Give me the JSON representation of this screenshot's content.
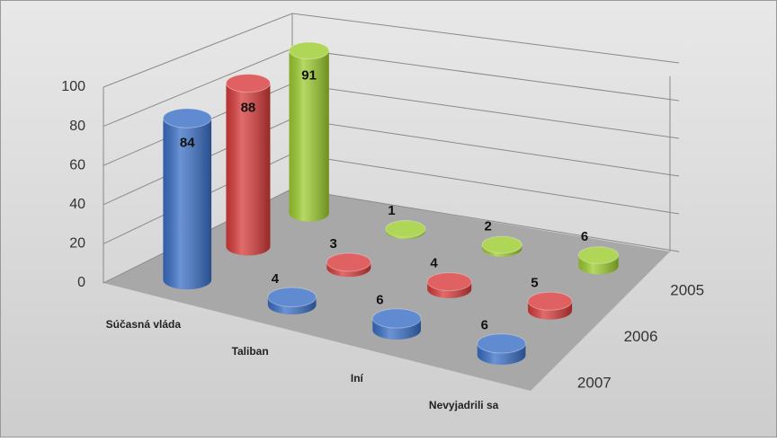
{
  "chart_data": {
    "type": "bar3d",
    "categories": [
      "Súčasná vláda",
      "Taliban",
      "Iní",
      "Nevyjadrili sa"
    ],
    "series": [
      {
        "name": "2005",
        "color": "#9dcc2e",
        "values": [
          91,
          1,
          2,
          6
        ]
      },
      {
        "name": "2006",
        "color": "#d83a3a",
        "values": [
          88,
          3,
          4,
          5
        ]
      },
      {
        "name": "2007",
        "color": "#3a6fc6",
        "values": [
          84,
          4,
          6,
          6
        ]
      }
    ],
    "ylim": [
      0,
      100
    ],
    "yticks": [
      0,
      20,
      40,
      60,
      80,
      100
    ],
    "grid": true
  }
}
